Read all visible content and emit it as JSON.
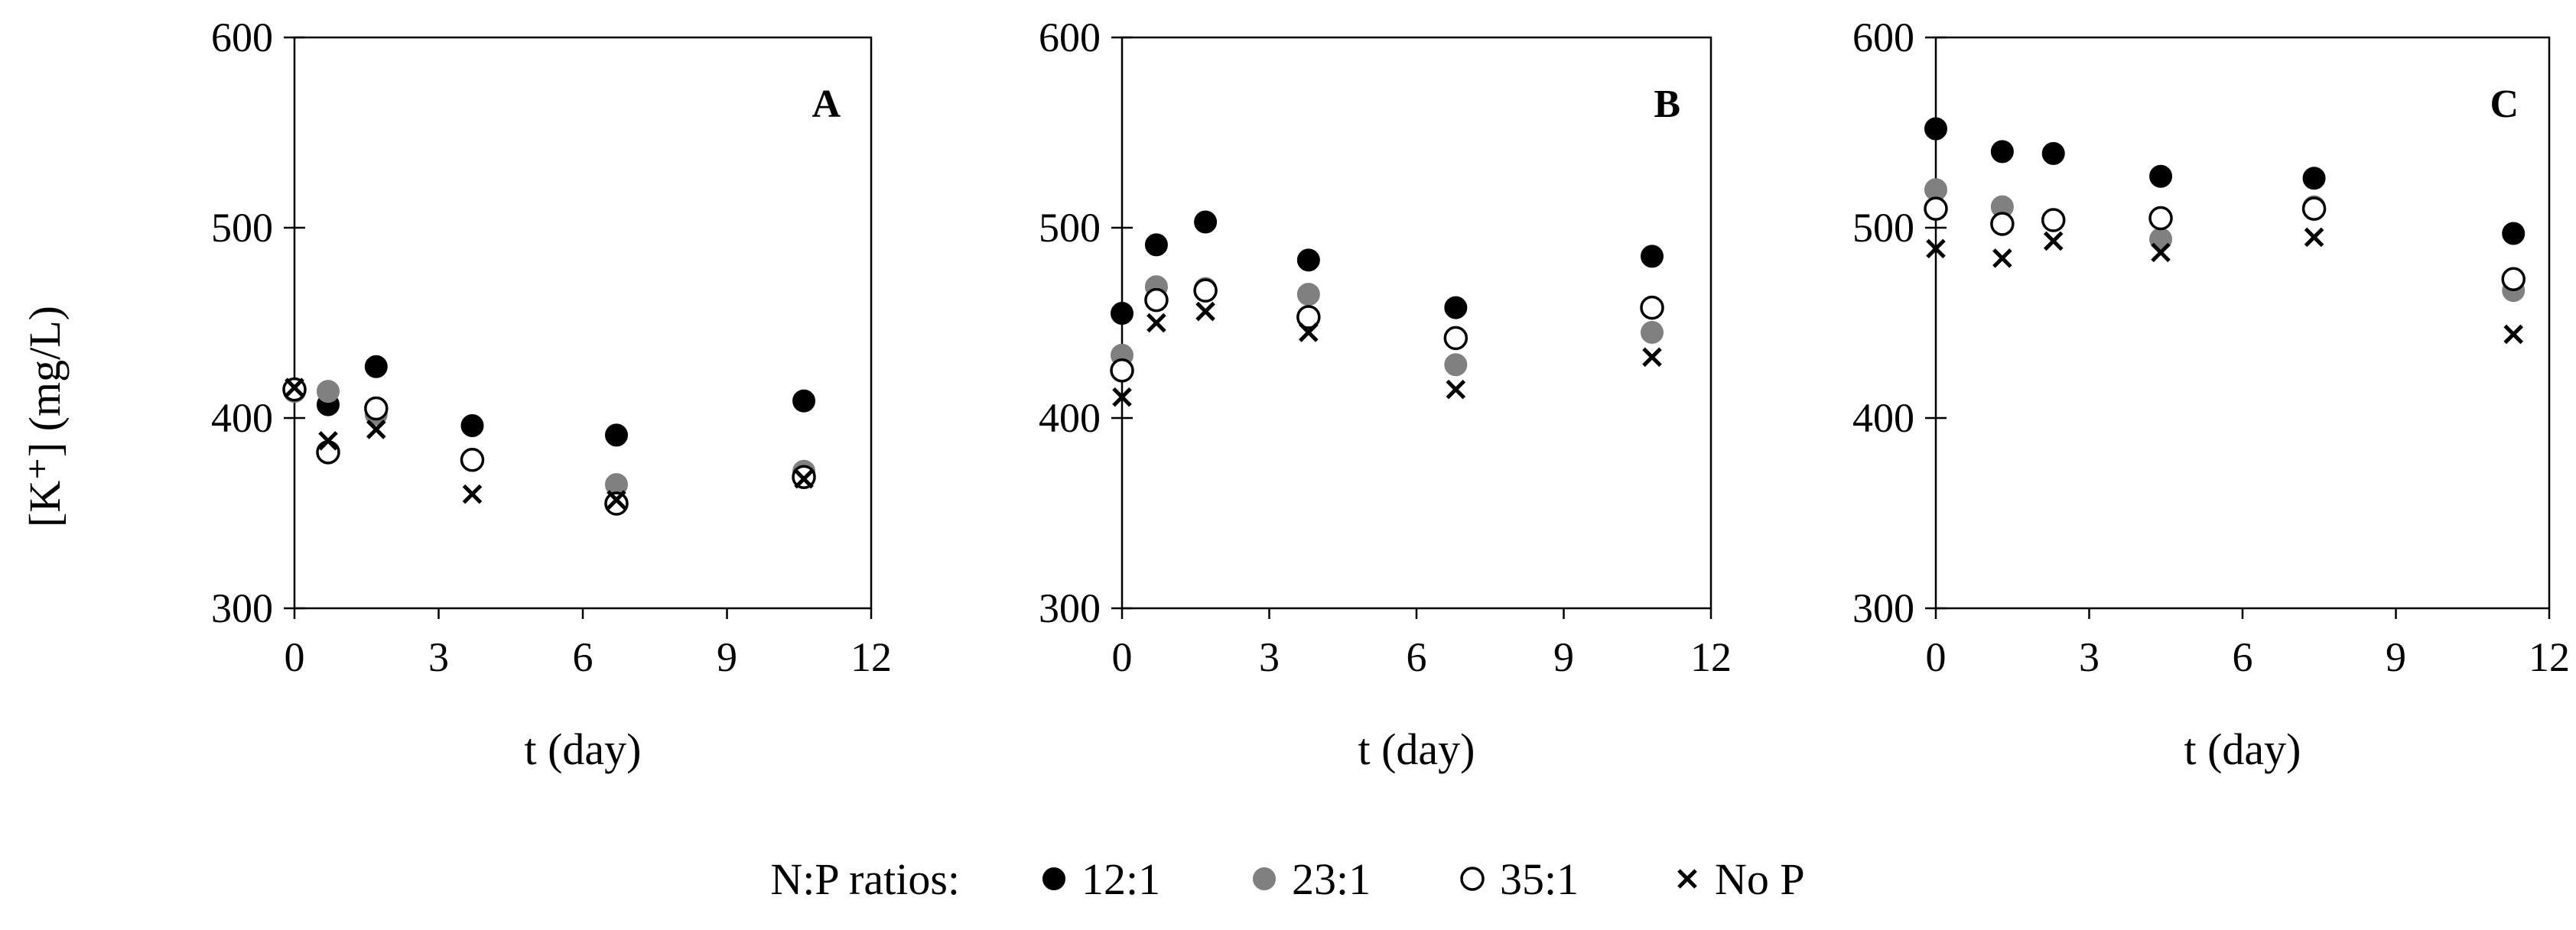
{
  "chart_data": {
    "type": "scatter",
    "ylabel": "[K⁺] (mg/L)",
    "xlabel": "t (day)",
    "legend": {
      "title": "N:P ratios:",
      "placement": "bottom-center",
      "entries": [
        {
          "name": "12:1",
          "marker": "filled-black-circle"
        },
        {
          "name": "23:1",
          "marker": "filled-gray-circle"
        },
        {
          "name": "35:1",
          "marker": "open-circle"
        },
        {
          "name": "No P",
          "marker": "x"
        }
      ]
    },
    "xlim": [
      0,
      12
    ],
    "ylim": [
      300,
      600
    ],
    "xticks": [
      "0",
      "3",
      "6",
      "9",
      "12"
    ],
    "yticks": [
      "300",
      "400",
      "500",
      "600"
    ],
    "colors": {
      "12:1": "#000000",
      "23:1": "#808080",
      "35:1": "#ffffff",
      "No P": "#000000"
    },
    "panels": [
      {
        "label": "A",
        "series": [
          {
            "name": "12:1",
            "x": [
              0.7,
              1.7,
              3.7,
              6.7,
              10.6
            ],
            "y": [
              407,
              427,
              396,
              391,
              409
            ]
          },
          {
            "name": "23:1",
            "x": [
              0,
              0.7,
              1.7,
              3.7,
              6.7,
              10.6
            ],
            "y": [
              414,
              414,
              402,
              378,
              365,
              372
            ]
          },
          {
            "name": "35:1",
            "x": [
              0,
              0.7,
              1.7,
              3.7,
              6.7,
              10.6
            ],
            "y": [
              415,
              382,
              405,
              378,
              355,
              369
            ]
          },
          {
            "name": "No P",
            "x": [
              0,
              0.7,
              1.7,
              3.7,
              6.7,
              10.6
            ],
            "y": [
              416,
              388,
              394,
              360,
              357,
              368
            ]
          }
        ]
      },
      {
        "label": "B",
        "series": [
          {
            "name": "12:1",
            "x": [
              0,
              0.7,
              1.7,
              3.8,
              6.8,
              10.8
            ],
            "y": [
              455,
              491,
              503,
              483,
              458,
              485
            ]
          },
          {
            "name": "23:1",
            "x": [
              0,
              0.7,
              1.7,
              3.8,
              6.8,
              10.8
            ],
            "y": [
              433,
              469,
              468,
              465,
              428,
              445
            ]
          },
          {
            "name": "35:1",
            "x": [
              0,
              0.7,
              1.7,
              3.8,
              6.8,
              10.8
            ],
            "y": [
              425,
              462,
              467,
              453,
              442,
              458
            ]
          },
          {
            "name": "No P",
            "x": [
              0,
              0.7,
              1.7,
              3.8,
              6.8,
              10.8
            ],
            "y": [
              411,
              450,
              456,
              445,
              415,
              432
            ]
          }
        ]
      },
      {
        "label": "C",
        "series": [
          {
            "name": "12:1",
            "x": [
              0,
              1.3,
              2.3,
              4.4,
              7.4,
              11.3
            ],
            "y": [
              552,
              540,
              539,
              527,
              526,
              497
            ]
          },
          {
            "name": "23:1",
            "x": [
              0,
              1.3,
              2.3,
              4.4,
              7.4,
              11.3
            ],
            "y": [
              520,
              511,
              504,
              494,
              511,
              467
            ]
          },
          {
            "name": "35:1",
            "x": [
              0,
              1.3,
              2.3,
              4.4,
              7.4,
              11.3
            ],
            "y": [
              510,
              502,
              504,
              505,
              510,
              473
            ]
          },
          {
            "name": "No P",
            "x": [
              0,
              1.3,
              2.3,
              4.4,
              7.4,
              11.3
            ],
            "y": [
              489,
              484,
              493,
              487,
              495,
              444
            ]
          }
        ]
      }
    ]
  }
}
